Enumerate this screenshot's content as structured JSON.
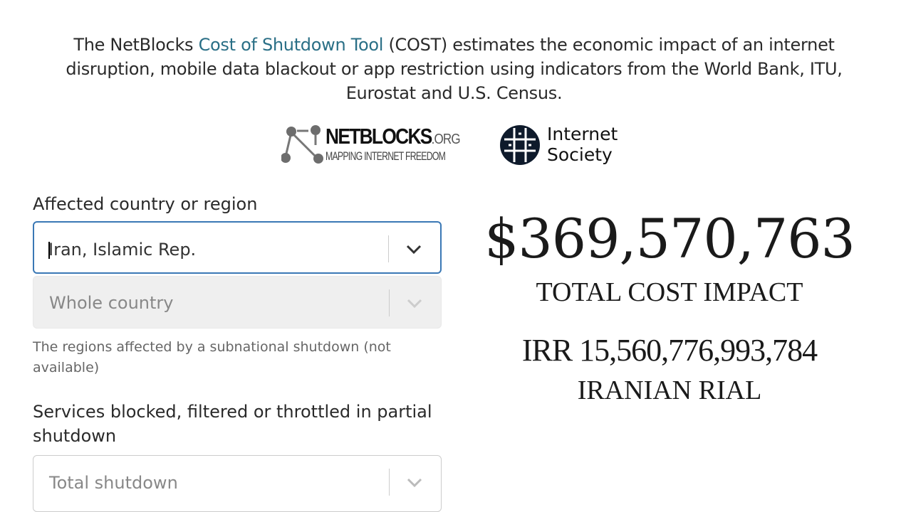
{
  "intro": {
    "before": "The NetBlocks ",
    "link": "Cost of Shutdown Tool",
    "after": " (COST) estimates the economic impact of an internet disruption, mobile data blackout or app restriction using indicators from the World Bank, ITU, Eurostat and U.S. Census."
  },
  "logos": {
    "netblocks_title": "NETBLOCKS",
    "netblocks_tld": ".ORG",
    "netblocks_tagline": "MAPPING INTERNET FREEDOM",
    "isoc_line1": "Internet",
    "isoc_line2": "Society"
  },
  "form": {
    "country_label": "Affected country or region",
    "country_value": "Iran, Islamic Rep.",
    "region_value": "Whole country",
    "region_hint": "The regions affected by a subnational shutdown (not available)",
    "services_label": "Services blocked, filtered or throttled in partial shutdown",
    "services_value": "Total shutdown"
  },
  "result": {
    "total_cost": "$369,570,763",
    "total_label": "TOTAL COST IMPACT",
    "local_cost": "IRR 15,560,776,993,784",
    "currency_label": "IRANIAN RIAL"
  },
  "colors": {
    "link": "#2a6f86",
    "focus_border": "#3a78b5"
  }
}
